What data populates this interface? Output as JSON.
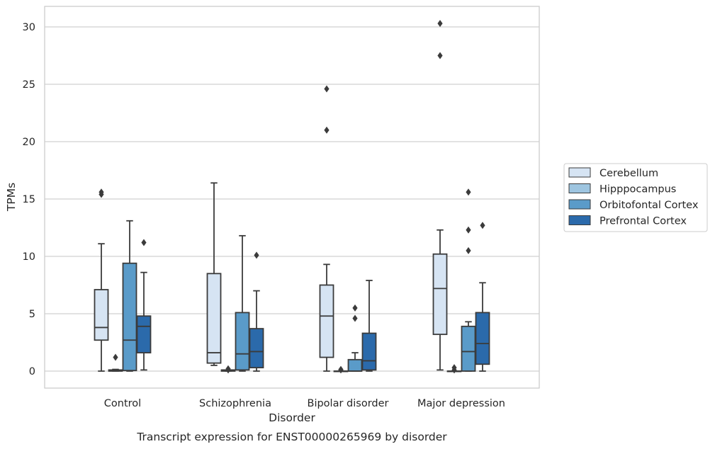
{
  "chart_data": {
    "type": "box",
    "xlabel": "Disorder",
    "ylabel": "TPMs",
    "caption": "Transcript expression for ENST00000265969 by disorder",
    "ylim": [
      -1.5,
      32
    ],
    "yticks": [
      0,
      5,
      10,
      15,
      20,
      25,
      30
    ],
    "grid": true,
    "legend_position": "right",
    "categories": [
      "Control",
      "Schizophrenia",
      "Bipolar disorder",
      "Major depression"
    ],
    "series": [
      {
        "name": "Cerebellum",
        "color": "#d6e4f3",
        "boxes": [
          {
            "whisker_low": 0,
            "q1": 2.7,
            "median": 3.8,
            "q3": 7.1,
            "whisker_high": 11.1,
            "outliers": [
              15.4,
              15.6
            ]
          },
          {
            "whisker_low": 0.5,
            "q1": 0.7,
            "median": 1.6,
            "q3": 8.5,
            "whisker_high": 16.4,
            "outliers": []
          },
          {
            "whisker_low": 0,
            "q1": 1.2,
            "median": 4.8,
            "q3": 7.5,
            "whisker_high": 9.3,
            "outliers": [
              21.0,
              24.6
            ]
          },
          {
            "whisker_low": 0.1,
            "q1": 3.2,
            "median": 7.2,
            "q3": 10.2,
            "whisker_high": 12.3,
            "outliers": [
              27.5,
              30.3
            ]
          }
        ]
      },
      {
        "name": "Hipppocampus",
        "color": "#9ec5e0",
        "boxes": [
          {
            "whisker_low": 0,
            "q1": 0,
            "median": 0.05,
            "q3": 0.1,
            "whisker_high": 0.15,
            "outliers": [
              1.2
            ]
          },
          {
            "whisker_low": 0,
            "q1": 0,
            "median": 0.05,
            "q3": 0.1,
            "whisker_high": 0.1,
            "outliers": [
              0.1,
              0.2
            ]
          },
          {
            "whisker_low": 0,
            "q1": 0,
            "median": 0,
            "q3": 0,
            "whisker_high": 0,
            "outliers": [
              0.1,
              0.15
            ]
          },
          {
            "whisker_low": 0,
            "q1": 0,
            "median": 0,
            "q3": 0,
            "whisker_high": 0,
            "outliers": [
              0.1,
              0.3
            ]
          }
        ]
      },
      {
        "name": "Orbitofontal Cortex",
        "color": "#5a9bc9",
        "boxes": [
          {
            "whisker_low": 0,
            "q1": 0.05,
            "median": 2.7,
            "q3": 9.4,
            "whisker_high": 13.1,
            "outliers": []
          },
          {
            "whisker_low": 0,
            "q1": 0.1,
            "median": 1.5,
            "q3": 5.1,
            "whisker_high": 11.8,
            "outliers": []
          },
          {
            "whisker_low": 0,
            "q1": 0,
            "median": 0,
            "q3": 1.0,
            "whisker_high": 1.6,
            "outliers": [
              4.6,
              5.5
            ]
          },
          {
            "whisker_low": 0,
            "q1": 0,
            "median": 1.7,
            "q3": 3.9,
            "whisker_high": 4.3,
            "outliers": [
              10.5,
              12.3,
              15.6
            ]
          }
        ]
      },
      {
        "name": "Prefrontal Cortex",
        "color": "#2b6aab",
        "boxes": [
          {
            "whisker_low": 0.1,
            "q1": 1.6,
            "median": 3.9,
            "q3": 4.8,
            "whisker_high": 8.6,
            "outliers": [
              11.2
            ]
          },
          {
            "whisker_low": 0,
            "q1": 0.3,
            "median": 1.7,
            "q3": 3.7,
            "whisker_high": 7.0,
            "outliers": [
              10.1
            ]
          },
          {
            "whisker_low": 0,
            "q1": 0.1,
            "median": 0.9,
            "q3": 3.3,
            "whisker_high": 7.9,
            "outliers": []
          },
          {
            "whisker_low": 0,
            "q1": 0.6,
            "median": 2.4,
            "q3": 5.1,
            "whisker_high": 7.7,
            "outliers": [
              12.7
            ]
          }
        ]
      }
    ]
  }
}
